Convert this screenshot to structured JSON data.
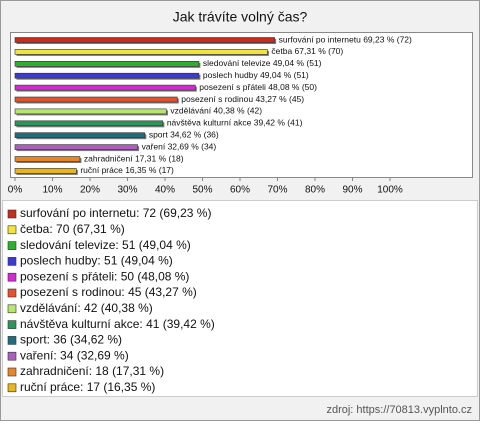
{
  "chart_data": {
    "type": "bar",
    "orientation": "horizontal",
    "title": "Jak trávíte volný čas?",
    "categories": [
      "surfování po internetu",
      "četba",
      "sledování televize",
      "poslech hudby",
      "posezení s přáteli",
      "posezení s rodinou",
      "vzdělávání",
      "návštěva kulturní akce",
      "sport",
      "vaření",
      "zahradničení",
      "ruční práce"
    ],
    "values": [
      69.23,
      67.31,
      49.04,
      49.04,
      48.08,
      43.27,
      40.38,
      39.42,
      34.62,
      32.69,
      17.31,
      16.35
    ],
    "value_labels": [
      "surfování po internetu 69,23 % (72)",
      "četba 67,31 % (70)",
      "sledování televize 49,04 % (51)",
      "poslech hudby 49,04 % (51)",
      "posezení s přáteli 48,08 % (50)",
      "posezení s rodinou 43,27 % (45)",
      "vzdělávání 40,38 % (42)",
      "návštěva kulturní akce 39,42 % (41)",
      "sport 34,62 % (36)",
      "vaření 32,69 % (34)",
      "zahradničení 17,31 % (18)",
      "ruční práce 16,35 % (17)"
    ],
    "legend_labels": [
      "surfování po internetu: 72 (69,23 %)",
      "četba: 70 (67,31 %)",
      "sledování televize: 51 (49,04 %)",
      "poslech hudby: 51 (49,04 %)",
      "posezení s přáteli: 50 (48,08 %)",
      "posezení s rodinou: 45 (43,27 %)",
      "vzdělávání: 42 (40,38 %)",
      "návštěva kulturní akce: 41 (39,42 %)",
      "sport: 36 (34,62 %)",
      "vaření: 34 (32,69 %)",
      "zahradničení: 18 (17,31 %)",
      "ruční práce: 17 (16,35 %)"
    ],
    "colors": [
      "#c62d1f",
      "#f2e23c",
      "#2eaf2e",
      "#3a3ad6",
      "#d02ad0",
      "#e4512a",
      "#b6e66a",
      "#2a975a",
      "#1f6e7e",
      "#ac5dbe",
      "#e6852a",
      "#e6b51f"
    ],
    "xlim": [
      0,
      100
    ],
    "xticks": [
      {
        "value": 0,
        "label": "0%"
      },
      {
        "value": 10,
        "label": "10%"
      },
      {
        "value": 20,
        "label": "20%"
      },
      {
        "value": 30,
        "label": "30%"
      },
      {
        "value": 40,
        "label": "40%"
      },
      {
        "value": 50,
        "label": "50%"
      },
      {
        "value": 60,
        "label": "60%"
      },
      {
        "value": 70,
        "label": "70%"
      },
      {
        "value": 80,
        "label": "80%"
      },
      {
        "value": 90,
        "label": "90%"
      },
      {
        "value": 100,
        "label": "100%"
      }
    ],
    "source": "zdroj: https://70813.vyplnto.cz"
  }
}
